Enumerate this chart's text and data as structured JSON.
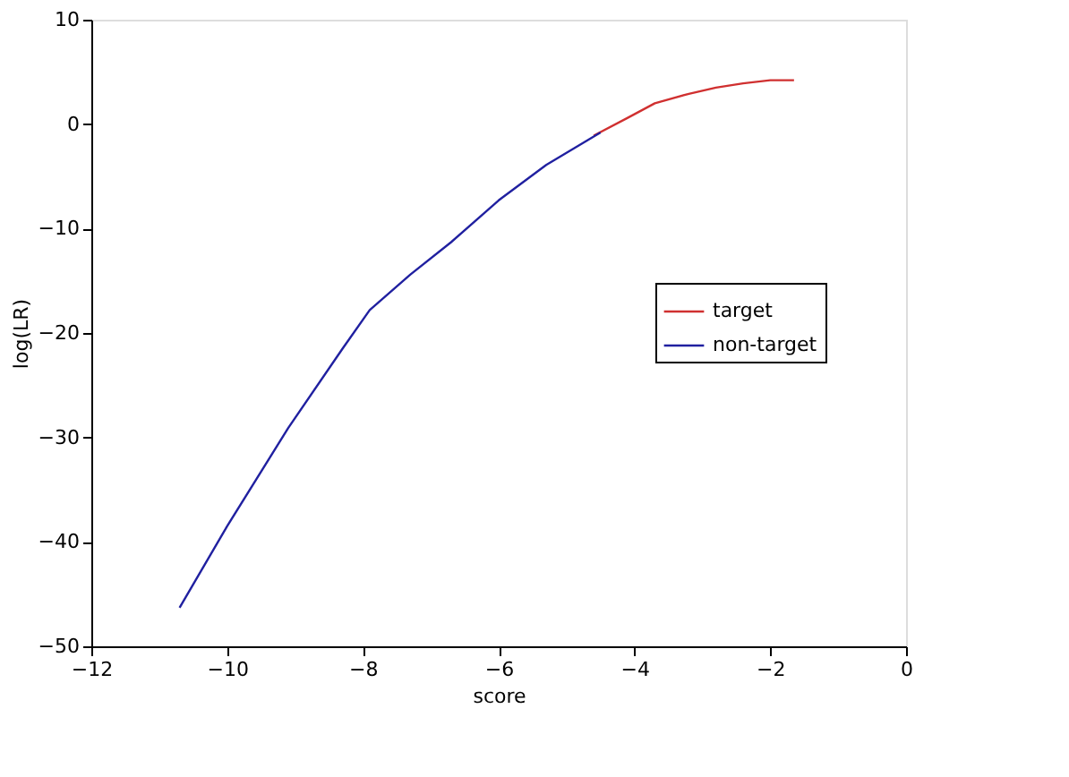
{
  "chart_data": {
    "type": "line",
    "xlabel": "score",
    "ylabel": "log(LR)",
    "xlim": [
      -12,
      0
    ],
    "xticks": [
      -12,
      -10,
      -8,
      -6,
      -4,
      -2,
      0
    ],
    "ylim": [
      -50,
      10
    ],
    "yticks": [
      -50,
      -40,
      -30,
      -20,
      -10,
      0,
      10
    ],
    "legend": "right",
    "grid": false,
    "line_style": "solid",
    "series": [
      {
        "name": "target",
        "color": "#d03030",
        "x": [
          -4.6,
          -4.1,
          -3.7,
          -3.2,
          -2.8,
          -2.4,
          -2.0,
          -1.65
        ],
        "values": [
          -1.1,
          0.6,
          2.0,
          2.9,
          3.5,
          3.9,
          4.2,
          4.2
        ]
      },
      {
        "name": "non-target",
        "color": "#2020a0",
        "x": [
          -10.7,
          -10.0,
          -9.1,
          -8.3,
          -7.9,
          -7.3,
          -6.7,
          -6.0,
          -5.3,
          -4.5
        ],
        "values": [
          -46.3,
          -38.5,
          -29.1,
          -21.5,
          -17.8,
          -14.4,
          -11.3,
          -7.3,
          -3.9,
          -0.8
        ]
      }
    ]
  }
}
